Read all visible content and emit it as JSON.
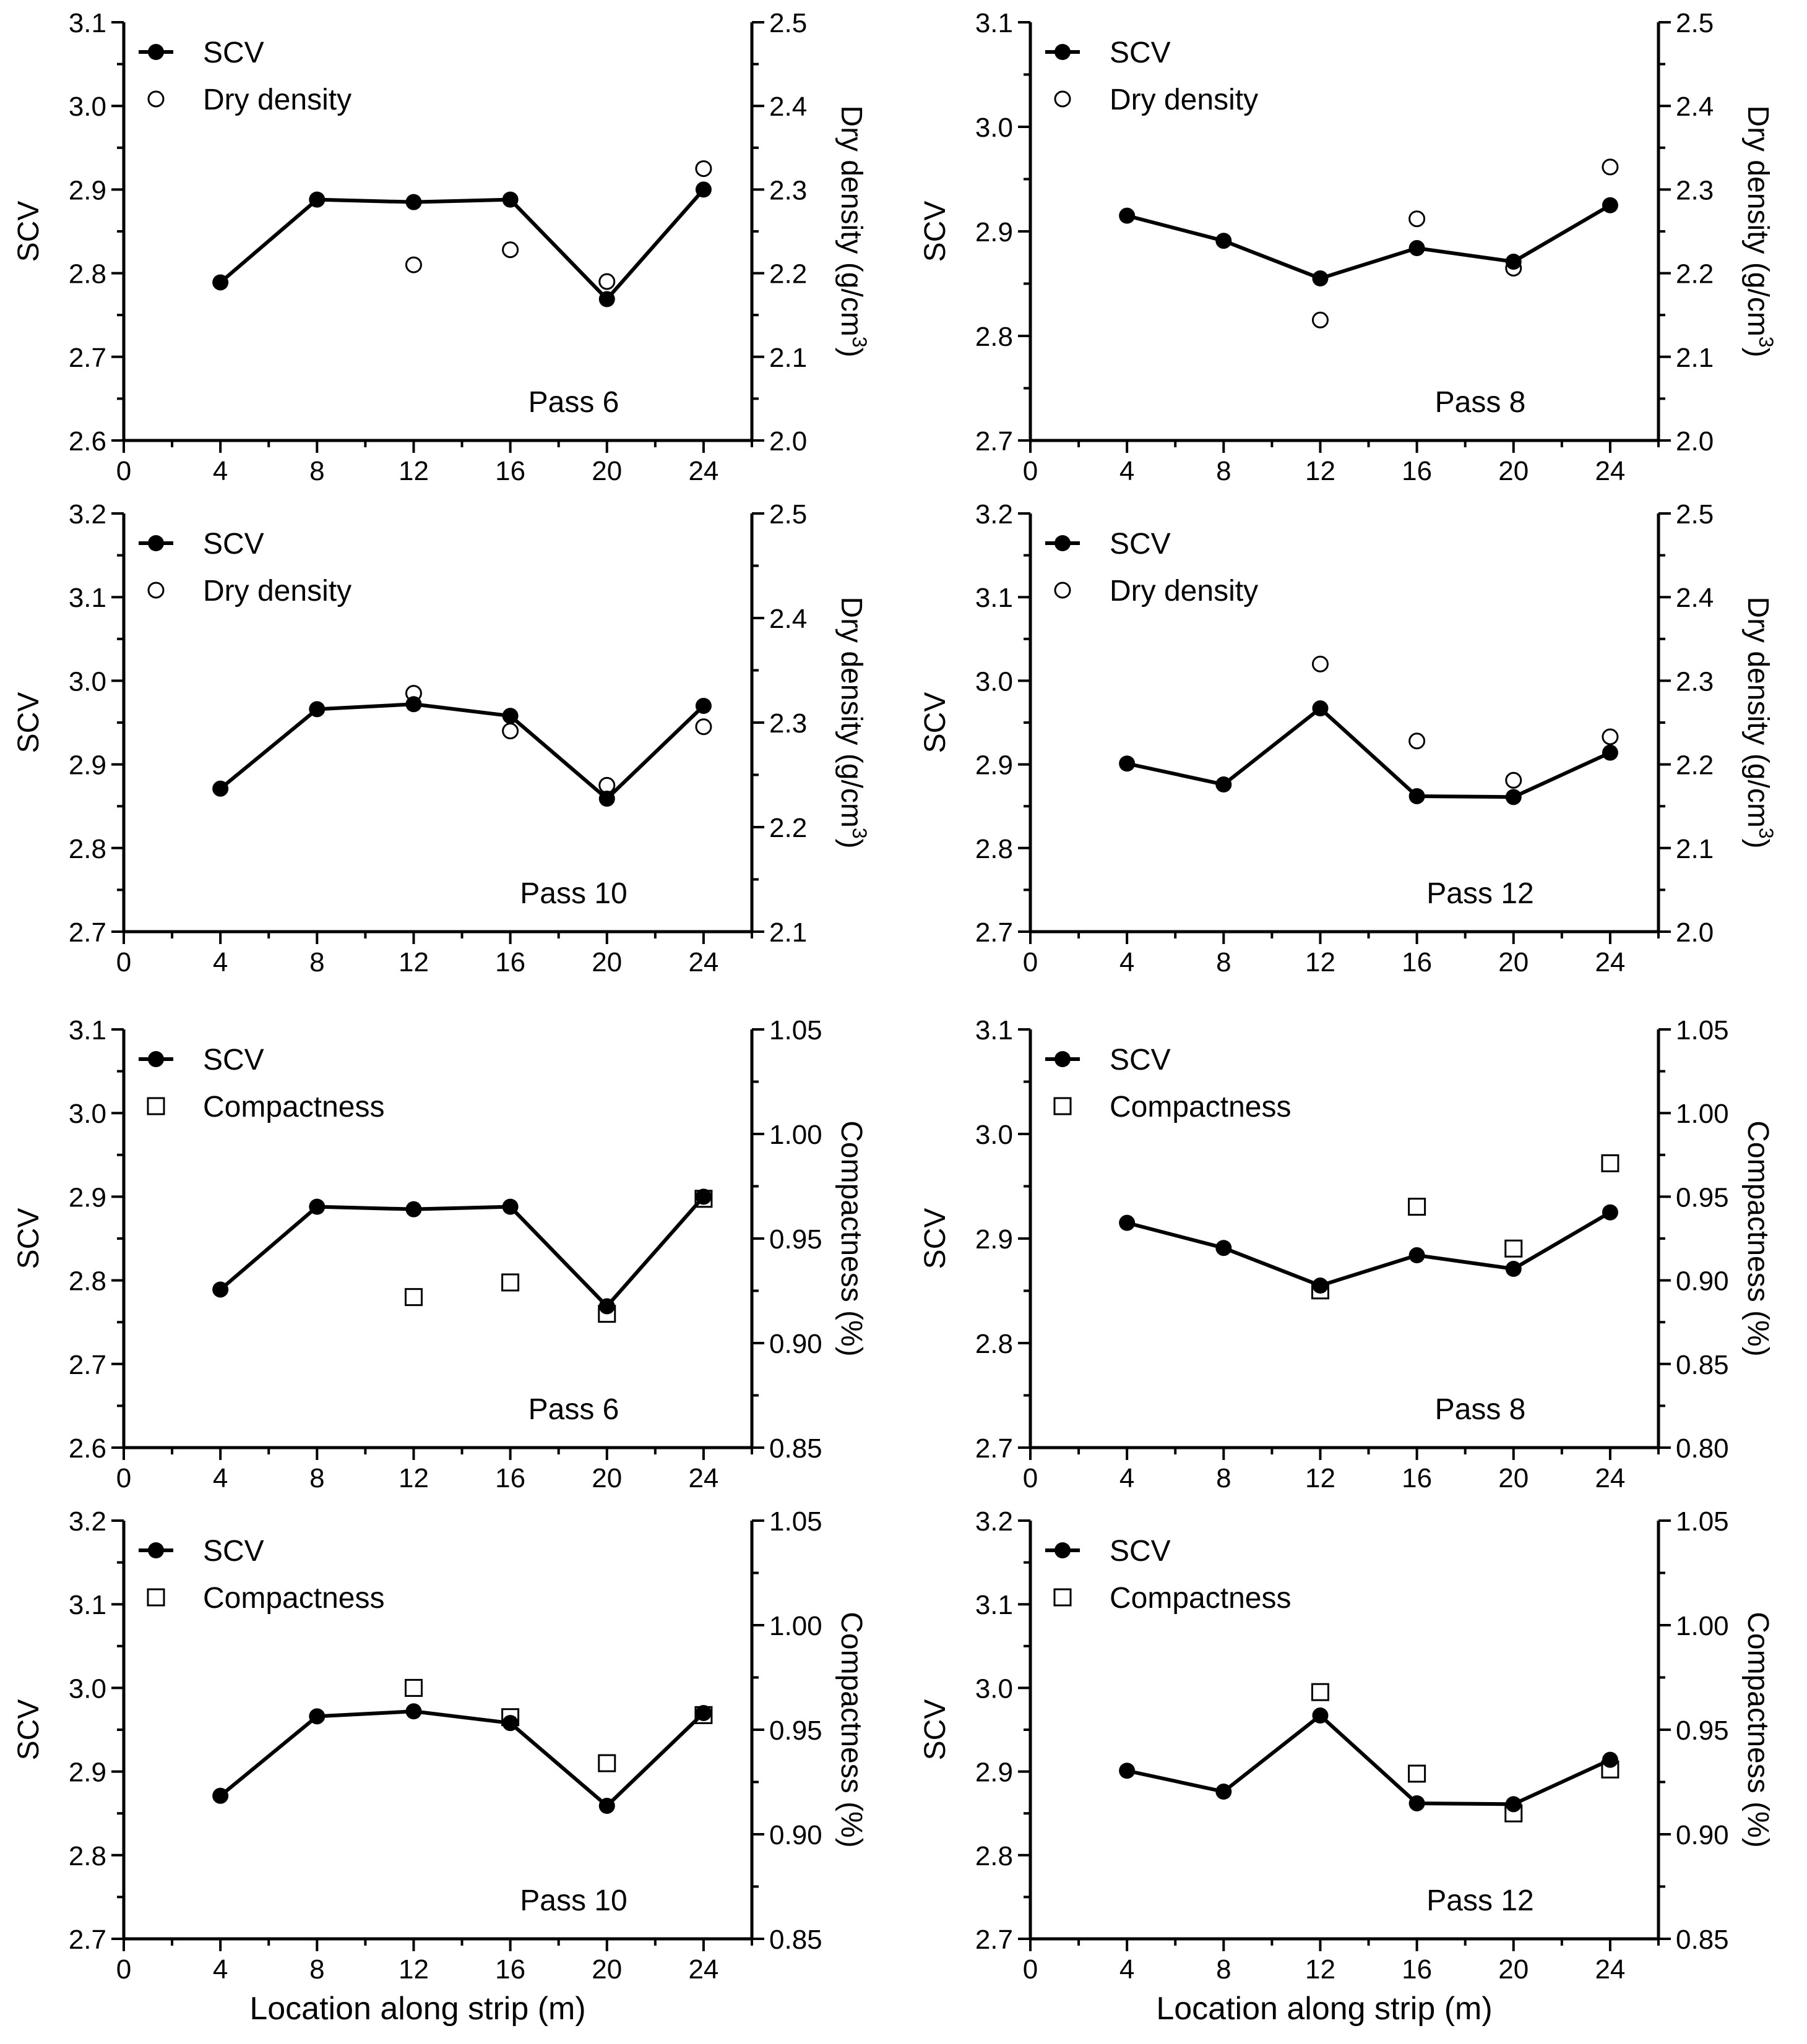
{
  "colors": {
    "ink": "#000000",
    "background": "#ffffff"
  },
  "xlabel": "Location along strip (m)",
  "chart_data": [
    {
      "type": "line",
      "pass_label": "Pass 6",
      "x": [
        4,
        8,
        12,
        16,
        20,
        24
      ],
      "xlim": [
        0,
        26
      ],
      "xticks": [
        0,
        4,
        8,
        12,
        16,
        20,
        24
      ],
      "xtick_labels": [
        "0",
        "4",
        "8",
        "12",
        "16",
        "20",
        "24"
      ],
      "xlabel": "",
      "left": {
        "label": "SCV",
        "lim": [
          2.6,
          3.1
        ],
        "ticks": [
          2.6,
          2.7,
          2.8,
          2.9,
          3.0,
          3.1
        ],
        "tick_labels": [
          "2.6",
          "2.7",
          "2.8",
          "2.9",
          "3.0",
          "3.1"
        ]
      },
      "right": {
        "label": "Dry density (g/cm",
        "label_sup": "3",
        "label_tail": ")",
        "lim": [
          2.0,
          2.5
        ],
        "ticks": [
          2.0,
          2.1,
          2.2,
          2.3,
          2.4,
          2.5
        ],
        "tick_labels": [
          "2.0",
          "2.1",
          "2.2",
          "2.3",
          "2.4",
          "2.5"
        ]
      },
      "series": [
        {
          "name": "SCV",
          "axis": "left",
          "marker": "filled-circle",
          "line": true,
          "x": [
            4,
            8,
            12,
            16,
            20,
            24
          ],
          "values": [
            2.789,
            2.888,
            2.885,
            2.888,
            2.769,
            2.9
          ]
        },
        {
          "name": "Dry density",
          "axis": "right",
          "marker": "open-circle",
          "line": false,
          "x": [
            12,
            16,
            20,
            24
          ],
          "values": [
            2.21,
            2.228,
            2.19,
            2.325
          ]
        }
      ]
    },
    {
      "type": "line",
      "pass_label": "Pass 8",
      "x": [
        4,
        8,
        12,
        16,
        20,
        24
      ],
      "xlim": [
        0,
        26
      ],
      "xticks": [
        0,
        4,
        8,
        12,
        16,
        20,
        24
      ],
      "xtick_labels": [
        "0",
        "4",
        "8",
        "12",
        "16",
        "20",
        "24"
      ],
      "xlabel": "",
      "left": {
        "label": "SCV",
        "lim": [
          2.7,
          3.1
        ],
        "ticks": [
          2.7,
          2.8,
          2.9,
          3.0,
          3.1
        ],
        "tick_labels": [
          "2.7",
          "2.8",
          "2.9",
          "3.0",
          "3.1"
        ]
      },
      "right": {
        "label": "Dry density (g/cm",
        "label_sup": "3",
        "label_tail": ")",
        "lim": [
          2.0,
          2.5
        ],
        "ticks": [
          2.0,
          2.1,
          2.2,
          2.3,
          2.4,
          2.5
        ],
        "tick_labels": [
          "2.0",
          "2.1",
          "2.2",
          "2.3",
          "2.4",
          "2.5"
        ]
      },
      "series": [
        {
          "name": "SCV",
          "axis": "left",
          "marker": "filled-circle",
          "line": true,
          "x": [
            4,
            8,
            12,
            16,
            20,
            24
          ],
          "values": [
            2.915,
            2.891,
            2.855,
            2.884,
            2.871,
            2.925
          ]
        },
        {
          "name": "Dry density",
          "axis": "right",
          "marker": "open-circle",
          "line": false,
          "x": [
            12,
            16,
            20,
            24
          ],
          "values": [
            2.144,
            2.265,
            2.206,
            2.327
          ]
        }
      ]
    },
    {
      "type": "line",
      "pass_label": "Pass 10",
      "x": [
        4,
        8,
        12,
        16,
        20,
        24
      ],
      "xlim": [
        0,
        26
      ],
      "xticks": [
        0,
        4,
        8,
        12,
        16,
        20,
        24
      ],
      "xtick_labels": [
        "0",
        "4",
        "8",
        "12",
        "16",
        "20",
        "24"
      ],
      "xlabel": "",
      "left": {
        "label": "SCV",
        "lim": [
          2.7,
          3.2
        ],
        "ticks": [
          2.7,
          2.8,
          2.9,
          3.0,
          3.1,
          3.2
        ],
        "tick_labels": [
          "2.7",
          "2.8",
          "2.9",
          "3.0",
          "3.1",
          "3.2"
        ]
      },
      "right": {
        "label": "Dry density (g/cm",
        "label_sup": "3",
        "label_tail": ")",
        "lim": [
          2.1,
          2.5
        ],
        "ticks": [
          2.1,
          2.2,
          2.3,
          2.4,
          2.5
        ],
        "tick_labels": [
          "2.1",
          "2.2",
          "2.3",
          "2.4",
          "2.5"
        ]
      },
      "series": [
        {
          "name": "SCV",
          "axis": "left",
          "marker": "filled-circle",
          "line": true,
          "x": [
            4,
            8,
            12,
            16,
            20,
            24
          ],
          "values": [
            2.871,
            2.966,
            2.972,
            2.958,
            2.859,
            2.97
          ]
        },
        {
          "name": "Dry density",
          "axis": "right",
          "marker": "open-circle",
          "line": false,
          "x": [
            12,
            16,
            20,
            24
          ],
          "values": [
            2.328,
            2.292,
            2.24,
            2.296
          ]
        }
      ]
    },
    {
      "type": "line",
      "pass_label": "Pass 12",
      "x": [
        4,
        8,
        12,
        16,
        20,
        24
      ],
      "xlim": [
        0,
        26
      ],
      "xticks": [
        0,
        4,
        8,
        12,
        16,
        20,
        24
      ],
      "xtick_labels": [
        "0",
        "4",
        "8",
        "12",
        "16",
        "20",
        "24"
      ],
      "xlabel": "",
      "left": {
        "label": "SCV",
        "lim": [
          2.7,
          3.2
        ],
        "ticks": [
          2.7,
          2.8,
          2.9,
          3.0,
          3.1,
          3.2
        ],
        "tick_labels": [
          "2.7",
          "2.8",
          "2.9",
          "3.0",
          "3.1",
          "3.2"
        ]
      },
      "right": {
        "label": "Dry density (g/cm",
        "label_sup": "3",
        "label_tail": ")",
        "lim": [
          2.0,
          2.5
        ],
        "ticks": [
          2.0,
          2.1,
          2.2,
          2.3,
          2.4,
          2.5
        ],
        "tick_labels": [
          "2.0",
          "2.1",
          "2.2",
          "2.3",
          "2.4",
          "2.5"
        ]
      },
      "series": [
        {
          "name": "SCV",
          "axis": "left",
          "marker": "filled-circle",
          "line": true,
          "x": [
            4,
            8,
            12,
            16,
            20,
            24
          ],
          "values": [
            2.901,
            2.876,
            2.967,
            2.862,
            2.861,
            2.914
          ]
        },
        {
          "name": "Dry density",
          "axis": "right",
          "marker": "open-circle",
          "line": false,
          "x": [
            12,
            16,
            20,
            24
          ],
          "values": [
            2.32,
            2.228,
            2.181,
            2.233
          ]
        }
      ]
    },
    {
      "type": "line",
      "pass_label": "Pass 6",
      "x": [
        4,
        8,
        12,
        16,
        20,
        24
      ],
      "xlim": [
        0,
        26
      ],
      "xticks": [
        0,
        4,
        8,
        12,
        16,
        20,
        24
      ],
      "xtick_labels": [
        "0",
        "4",
        "8",
        "12",
        "16",
        "20",
        "24"
      ],
      "xlabel": "",
      "left": {
        "label": "SCV",
        "lim": [
          2.6,
          3.1
        ],
        "ticks": [
          2.6,
          2.7,
          2.8,
          2.9,
          3.0,
          3.1
        ],
        "tick_labels": [
          "2.6",
          "2.7",
          "2.8",
          "2.9",
          "3.0",
          "3.1"
        ]
      },
      "right": {
        "label": "Compactness (%)",
        "lim": [
          0.85,
          1.05
        ],
        "ticks": [
          0.85,
          0.9,
          0.95,
          1.0,
          1.05
        ],
        "tick_labels": [
          "0.85",
          "0.90",
          "0.95",
          "1.00",
          "1.05"
        ]
      },
      "series": [
        {
          "name": "SCV",
          "axis": "left",
          "marker": "filled-circle",
          "line": true,
          "x": [
            4,
            8,
            12,
            16,
            20,
            24
          ],
          "values": [
            2.789,
            2.888,
            2.885,
            2.888,
            2.769,
            2.9
          ]
        },
        {
          "name": "Compactness",
          "axis": "right",
          "marker": "open-square",
          "line": false,
          "x": [
            12,
            16,
            20,
            24
          ],
          "values": [
            0.922,
            0.929,
            0.914,
            0.969
          ]
        }
      ]
    },
    {
      "type": "line",
      "pass_label": "Pass 8",
      "x": [
        4,
        8,
        12,
        16,
        20,
        24
      ],
      "xlim": [
        0,
        26
      ],
      "xticks": [
        0,
        4,
        8,
        12,
        16,
        20,
        24
      ],
      "xtick_labels": [
        "0",
        "4",
        "8",
        "12",
        "16",
        "20",
        "24"
      ],
      "xlabel": "",
      "left": {
        "label": "SCV",
        "lim": [
          2.7,
          3.1
        ],
        "ticks": [
          2.7,
          2.8,
          2.9,
          3.0,
          3.1
        ],
        "tick_labels": [
          "2.7",
          "2.8",
          "2.9",
          "3.0",
          "3.1"
        ]
      },
      "right": {
        "label": "Compactness (%)",
        "lim": [
          0.8,
          1.05
        ],
        "ticks": [
          0.8,
          0.85,
          0.9,
          0.95,
          1.0,
          1.05
        ],
        "tick_labels": [
          "0.80",
          "0.85",
          "0.90",
          "0.95",
          "1.00",
          "1.05"
        ]
      },
      "series": [
        {
          "name": "SCV",
          "axis": "left",
          "marker": "filled-circle",
          "line": true,
          "x": [
            4,
            8,
            12,
            16,
            20,
            24
          ],
          "values": [
            2.915,
            2.891,
            2.855,
            2.884,
            2.871,
            2.925
          ]
        },
        {
          "name": "Compactness",
          "axis": "right",
          "marker": "open-square",
          "line": false,
          "x": [
            12,
            16,
            20,
            24
          ],
          "values": [
            0.894,
            0.944,
            0.919,
            0.97
          ]
        }
      ]
    },
    {
      "type": "line",
      "pass_label": "Pass 10",
      "x": [
        4,
        8,
        12,
        16,
        20,
        24
      ],
      "xlim": [
        0,
        26
      ],
      "xticks": [
        0,
        4,
        8,
        12,
        16,
        20,
        24
      ],
      "xtick_labels": [
        "0",
        "4",
        "8",
        "12",
        "16",
        "20",
        "24"
      ],
      "xlabel": "Location along strip (m)",
      "left": {
        "label": "SCV",
        "lim": [
          2.7,
          3.2
        ],
        "ticks": [
          2.7,
          2.8,
          2.9,
          3.0,
          3.1,
          3.2
        ],
        "tick_labels": [
          "2.7",
          "2.8",
          "2.9",
          "3.0",
          "3.1",
          "3.2"
        ]
      },
      "right": {
        "label": "Compactness (%)",
        "lim": [
          0.85,
          1.05
        ],
        "ticks": [
          0.85,
          0.9,
          0.95,
          1.0,
          1.05
        ],
        "tick_labels": [
          "0.85",
          "0.90",
          "0.95",
          "1.00",
          "1.05"
        ]
      },
      "series": [
        {
          "name": "SCV",
          "axis": "left",
          "marker": "filled-circle",
          "line": true,
          "x": [
            4,
            8,
            12,
            16,
            20,
            24
          ],
          "values": [
            2.871,
            2.966,
            2.972,
            2.958,
            2.859,
            2.97
          ]
        },
        {
          "name": "Compactness",
          "axis": "right",
          "marker": "open-square",
          "line": false,
          "x": [
            12,
            16,
            20,
            24
          ],
          "values": [
            0.97,
            0.956,
            0.934,
            0.957
          ]
        }
      ]
    },
    {
      "type": "line",
      "pass_label": "Pass 12",
      "x": [
        4,
        8,
        12,
        16,
        20,
        24
      ],
      "xlim": [
        0,
        26
      ],
      "xticks": [
        0,
        4,
        8,
        12,
        16,
        20,
        24
      ],
      "xtick_labels": [
        "0",
        "4",
        "8",
        "12",
        "16",
        "20",
        "24"
      ],
      "xlabel": "Location along strip (m)",
      "left": {
        "label": "SCV",
        "lim": [
          2.7,
          3.2
        ],
        "ticks": [
          2.7,
          2.8,
          2.9,
          3.0,
          3.1,
          3.2
        ],
        "tick_labels": [
          "2.7",
          "2.8",
          "2.9",
          "3.0",
          "3.1",
          "3.2"
        ]
      },
      "right": {
        "label": "Compactness (%)",
        "lim": [
          0.85,
          1.05
        ],
        "ticks": [
          0.85,
          0.9,
          0.95,
          1.0,
          1.05
        ],
        "tick_labels": [
          "0.85",
          "0.90",
          "0.95",
          "1.00",
          "1.05"
        ]
      },
      "series": [
        {
          "name": "SCV",
          "axis": "left",
          "marker": "filled-circle",
          "line": true,
          "x": [
            4,
            8,
            12,
            16,
            20,
            24
          ],
          "values": [
            2.901,
            2.876,
            2.967,
            2.862,
            2.861,
            2.914
          ]
        },
        {
          "name": "Compactness",
          "axis": "right",
          "marker": "open-square",
          "line": false,
          "x": [
            12,
            16,
            20,
            24
          ],
          "values": [
            0.968,
            0.929,
            0.91,
            0.931
          ]
        }
      ]
    }
  ]
}
